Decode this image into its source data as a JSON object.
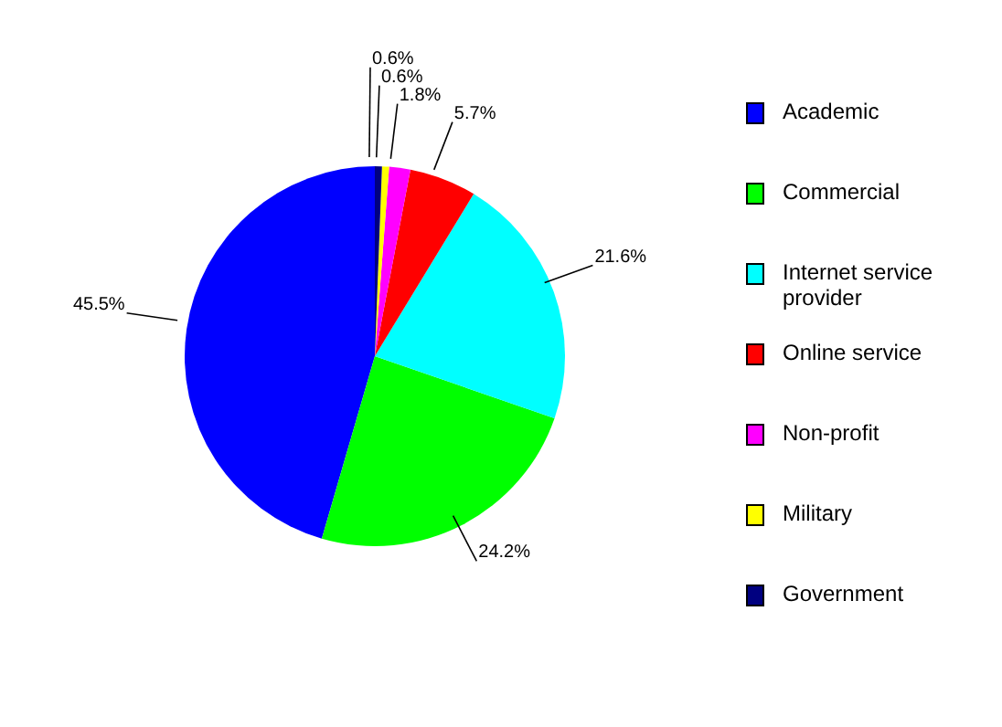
{
  "chart_data": {
    "type": "pie",
    "categories": [
      "Academic",
      "Commercial",
      "Internet service provider",
      "Online service",
      "Non-profit",
      "Military",
      "Government"
    ],
    "values": [
      45.5,
      24.2,
      21.6,
      5.7,
      1.8,
      0.6,
      0.6
    ],
    "value_labels": [
      "45.5%",
      "24.2%",
      "21.6%",
      "5.7%",
      "1.8%",
      "0.6%",
      "0.6%"
    ],
    "colors": [
      "#0000ff",
      "#00ff00",
      "#00ffff",
      "#ff0000",
      "#ff00ff",
      "#ffff00",
      "#000080"
    ],
    "legend": "right"
  }
}
